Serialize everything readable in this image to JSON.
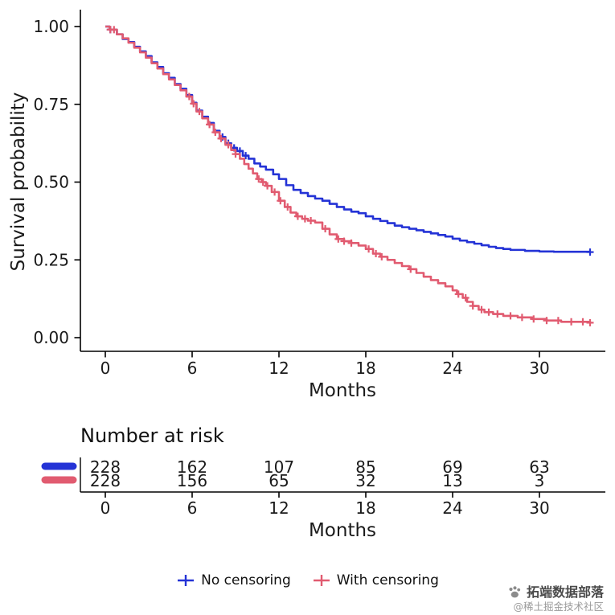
{
  "chart_data": {
    "type": "line",
    "subtype": "kaplan-meier-step",
    "title": "",
    "xlabel": "Months",
    "ylabel": "Survival probability",
    "xlim": [
      0,
      34.5
    ],
    "ylim": [
      0,
      1.0
    ],
    "xticks": [
      0,
      6,
      12,
      18,
      24,
      30
    ],
    "xtick_labels": [
      "0",
      "6",
      "12",
      "18",
      "24",
      "30"
    ],
    "yticks": [
      0,
      0.25,
      0.5,
      0.75,
      1.0
    ],
    "ytick_labels": [
      "0.00",
      "0.25",
      "0.50",
      "0.75",
      "1.00"
    ],
    "grid": false,
    "legend_position": "bottom",
    "series": [
      {
        "name": "No censoring",
        "color": "#2433d6",
        "points": [
          [
            0,
            1.0
          ],
          [
            0.3,
            0.99
          ],
          [
            0.8,
            0.975
          ],
          [
            1.2,
            0.96
          ],
          [
            1.6,
            0.95
          ],
          [
            2,
            0.935
          ],
          [
            2.4,
            0.92
          ],
          [
            2.8,
            0.905
          ],
          [
            3.2,
            0.885
          ],
          [
            3.6,
            0.87
          ],
          [
            4,
            0.85
          ],
          [
            4.4,
            0.835
          ],
          [
            4.8,
            0.815
          ],
          [
            5.2,
            0.8
          ],
          [
            5.6,
            0.78
          ],
          [
            6,
            0.755
          ],
          [
            6.3,
            0.73
          ],
          [
            6.7,
            0.71
          ],
          [
            7.1,
            0.69
          ],
          [
            7.5,
            0.665
          ],
          [
            7.9,
            0.645
          ],
          [
            8.3,
            0.625
          ],
          [
            8.7,
            0.61
          ],
          [
            9.1,
            0.6
          ],
          [
            9.5,
            0.585
          ],
          [
            9.9,
            0.575
          ],
          [
            10.3,
            0.56
          ],
          [
            10.7,
            0.55
          ],
          [
            11.1,
            0.54
          ],
          [
            11.6,
            0.525
          ],
          [
            12,
            0.51
          ],
          [
            12.5,
            0.49
          ],
          [
            13,
            0.475
          ],
          [
            13.5,
            0.465
          ],
          [
            14,
            0.455
          ],
          [
            14.5,
            0.447
          ],
          [
            15,
            0.44
          ],
          [
            15.5,
            0.43
          ],
          [
            16,
            0.42
          ],
          [
            16.5,
            0.412
          ],
          [
            17,
            0.405
          ],
          [
            17.5,
            0.4
          ],
          [
            18,
            0.39
          ],
          [
            18.5,
            0.382
          ],
          [
            19,
            0.375
          ],
          [
            19.5,
            0.368
          ],
          [
            20,
            0.36
          ],
          [
            20.5,
            0.355
          ],
          [
            21,
            0.35
          ],
          [
            21.5,
            0.345
          ],
          [
            22,
            0.34
          ],
          [
            22.5,
            0.335
          ],
          [
            23,
            0.33
          ],
          [
            23.5,
            0.325
          ],
          [
            24,
            0.318
          ],
          [
            24.5,
            0.312
          ],
          [
            25,
            0.307
          ],
          [
            25.5,
            0.302
          ],
          [
            26,
            0.297
          ],
          [
            26.5,
            0.292
          ],
          [
            27,
            0.288
          ],
          [
            27.5,
            0.285
          ],
          [
            28,
            0.282
          ],
          [
            29,
            0.279
          ],
          [
            30,
            0.277
          ],
          [
            31,
            0.276
          ],
          [
            33.5,
            0.275
          ]
        ],
        "censor_x": [
          0.35,
          8.1,
          8.5,
          8.9,
          9.3,
          9.7,
          33.5
        ]
      },
      {
        "name": "With censoring",
        "color": "#e15b70",
        "points": [
          [
            0,
            1.0
          ],
          [
            0.3,
            0.99
          ],
          [
            0.8,
            0.975
          ],
          [
            1.2,
            0.962
          ],
          [
            1.6,
            0.948
          ],
          [
            2,
            0.932
          ],
          [
            2.4,
            0.917
          ],
          [
            2.8,
            0.9
          ],
          [
            3.2,
            0.882
          ],
          [
            3.6,
            0.865
          ],
          [
            4,
            0.847
          ],
          [
            4.4,
            0.83
          ],
          [
            4.8,
            0.812
          ],
          [
            5.2,
            0.795
          ],
          [
            5.6,
            0.775
          ],
          [
            6,
            0.752
          ],
          [
            6.3,
            0.727
          ],
          [
            6.7,
            0.705
          ],
          [
            7.1,
            0.685
          ],
          [
            7.5,
            0.66
          ],
          [
            7.9,
            0.64
          ],
          [
            8.3,
            0.62
          ],
          [
            8.7,
            0.603
          ],
          [
            9,
            0.59
          ],
          [
            9.3,
            0.575
          ],
          [
            9.6,
            0.558
          ],
          [
            9.9,
            0.543
          ],
          [
            10.2,
            0.528
          ],
          [
            10.5,
            0.51
          ],
          [
            10.8,
            0.5
          ],
          [
            11.1,
            0.488
          ],
          [
            11.5,
            0.468
          ],
          [
            12,
            0.44
          ],
          [
            12.4,
            0.42
          ],
          [
            12.8,
            0.402
          ],
          [
            13.2,
            0.39
          ],
          [
            13.6,
            0.382
          ],
          [
            14,
            0.376
          ],
          [
            14.5,
            0.37
          ],
          [
            15,
            0.35
          ],
          [
            15.5,
            0.332
          ],
          [
            16,
            0.317
          ],
          [
            16.5,
            0.31
          ],
          [
            17,
            0.304
          ],
          [
            17.5,
            0.296
          ],
          [
            18,
            0.285
          ],
          [
            18.5,
            0.27
          ],
          [
            19,
            0.26
          ],
          [
            19.5,
            0.25
          ],
          [
            20,
            0.24
          ],
          [
            20.5,
            0.23
          ],
          [
            21,
            0.22
          ],
          [
            21.5,
            0.208
          ],
          [
            22,
            0.196
          ],
          [
            22.5,
            0.185
          ],
          [
            23,
            0.175
          ],
          [
            23.5,
            0.165
          ],
          [
            24,
            0.152
          ],
          [
            24.3,
            0.14
          ],
          [
            24.7,
            0.128
          ],
          [
            25,
            0.115
          ],
          [
            25.4,
            0.102
          ],
          [
            25.8,
            0.09
          ],
          [
            26.2,
            0.082
          ],
          [
            26.8,
            0.076
          ],
          [
            27.5,
            0.07
          ],
          [
            28.5,
            0.065
          ],
          [
            29.5,
            0.06
          ],
          [
            30.5,
            0.055
          ],
          [
            31.5,
            0.051
          ],
          [
            33.5,
            0.048
          ]
        ],
        "censor_x": [
          0.35,
          0.6,
          5.8,
          6.1,
          6.5,
          7.2,
          7.6,
          8.0,
          8.5,
          9.0,
          10.6,
          10.9,
          11.2,
          11.7,
          12.1,
          12.6,
          13.3,
          13.8,
          14.2,
          15.2,
          16.1,
          16.5,
          17.0,
          18.2,
          18.7,
          19.1,
          21.1,
          24.4,
          24.9,
          25.4,
          26.0,
          26.5,
          27.1,
          28.0,
          28.8,
          29.6,
          30.5,
          31.3,
          32.2,
          33.0,
          33.5
        ]
      }
    ]
  },
  "risk_table": {
    "title": "Number at risk",
    "xlabel": "Months",
    "times": [
      0,
      6,
      12,
      18,
      24,
      30
    ],
    "rows": [
      {
        "name": "No censoring",
        "color": "#2433d6",
        "counts": [
          228,
          162,
          107,
          85,
          69,
          63
        ]
      },
      {
        "name": "With censoring",
        "color": "#e15b70",
        "counts": [
          228,
          156,
          65,
          32,
          13,
          3
        ]
      }
    ]
  },
  "legend": {
    "entries": [
      {
        "label": "No censoring",
        "color": "#2433d6"
      },
      {
        "label": "With censoring",
        "color": "#e15b70"
      }
    ]
  },
  "watermark": {
    "name": "拓端数据部落",
    "handle": "@稀土掘金技术社区"
  },
  "colors": {
    "axis": "#000000",
    "tick_text": "#1a1a1a",
    "background": "#ffffff"
  }
}
